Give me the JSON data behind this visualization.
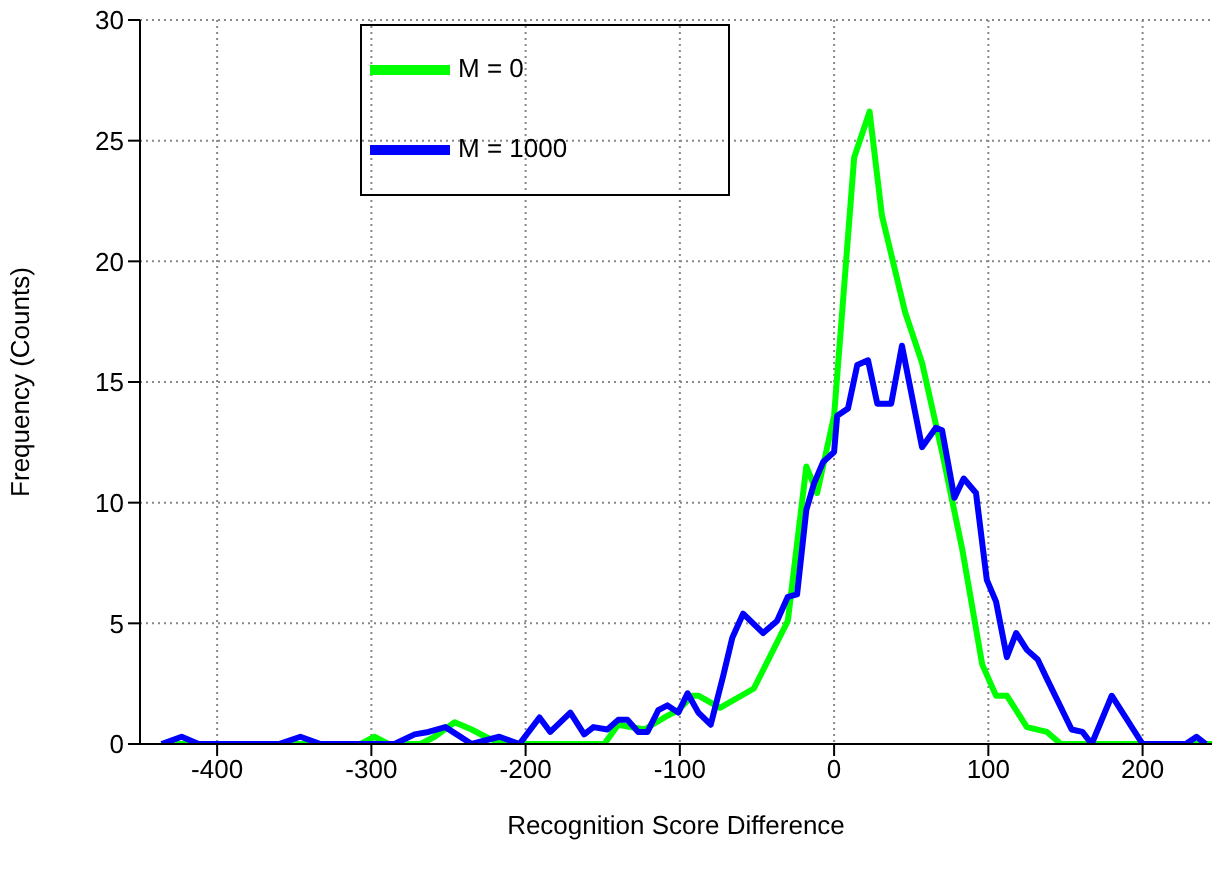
{
  "chart_data": {
    "type": "line",
    "xlabel": "Recognition Score Difference",
    "ylabel": "Frequency (Counts)",
    "xlim": [
      -450,
      245
    ],
    "xticks": [
      -400,
      -300,
      -200,
      -100,
      0,
      100,
      200
    ],
    "ylim": [
      0,
      30
    ],
    "yticks": [
      0,
      5,
      10,
      15,
      20,
      25,
      30
    ],
    "grid": true,
    "legend": "top",
    "marker": "none",
    "line_style": "solid",
    "series": [
      {
        "name": "M = 0",
        "color": "#00ff00",
        "x": [
          -436,
          -307,
          -298,
          -289,
          -268,
          -259,
          -246,
          -235,
          -226,
          -215,
          -149,
          -140,
          -123,
          -110,
          -101,
          -92,
          -88,
          -74,
          -52,
          -30,
          -18,
          -11,
          0,
          13,
          23,
          31,
          46,
          57,
          70,
          83,
          96,
          105,
          112,
          125,
          138,
          147,
          245
        ],
        "values": [
          0,
          0,
          0.3,
          0,
          0,
          0.3,
          0.9,
          0.6,
          0.3,
          0,
          0,
          0.8,
          0.6,
          1.1,
          1.4,
          2.0,
          2.0,
          1.5,
          2.3,
          5.1,
          11.5,
          10.4,
          13.6,
          24.3,
          26.2,
          21.9,
          17.9,
          15.8,
          12.1,
          8.1,
          3.3,
          2.0,
          2.0,
          0.7,
          0.5,
          0,
          0
        ]
      },
      {
        "name": "M = 1000",
        "color": "#0000ff",
        "x": [
          -436,
          -423,
          -412,
          -360,
          -346,
          -333,
          -285,
          -272,
          -263,
          -252,
          -235,
          -217,
          -204,
          -191,
          -184,
          -171,
          -162,
          -156,
          -147,
          -140,
          -134,
          -127,
          -121,
          -114,
          -108,
          -101,
          -95,
          -88,
          -80,
          -72,
          -66,
          -59,
          -46,
          -37,
          -30,
          -24,
          -18,
          -13,
          -7,
          0,
          2,
          9,
          15,
          22,
          28,
          37,
          44,
          57,
          66,
          70,
          78,
          84,
          92,
          99,
          105,
          112,
          118,
          125,
          132,
          138,
          154,
          161,
          167,
          180,
          200,
          228,
          235,
          241
        ],
        "values": [
          0,
          0.3,
          0,
          0,
          0.3,
          0,
          0,
          0.4,
          0.5,
          0.7,
          0,
          0.3,
          0,
          1.1,
          0.5,
          1.3,
          0.4,
          0.7,
          0.6,
          1.0,
          1.0,
          0.5,
          0.5,
          1.4,
          1.6,
          1.3,
          2.1,
          1.3,
          0.8,
          2.8,
          4.4,
          5.4,
          4.6,
          5.1,
          6.1,
          6.2,
          9.7,
          10.8,
          11.7,
          12.1,
          13.6,
          13.9,
          15.7,
          15.9,
          14.1,
          14.1,
          16.5,
          12.3,
          13.1,
          13.0,
          10.2,
          11.0,
          10.4,
          6.8,
          5.9,
          3.6,
          4.6,
          3.9,
          3.5,
          2.7,
          0.6,
          0.5,
          0,
          2.0,
          0,
          0,
          0.3,
          0
        ]
      }
    ]
  }
}
